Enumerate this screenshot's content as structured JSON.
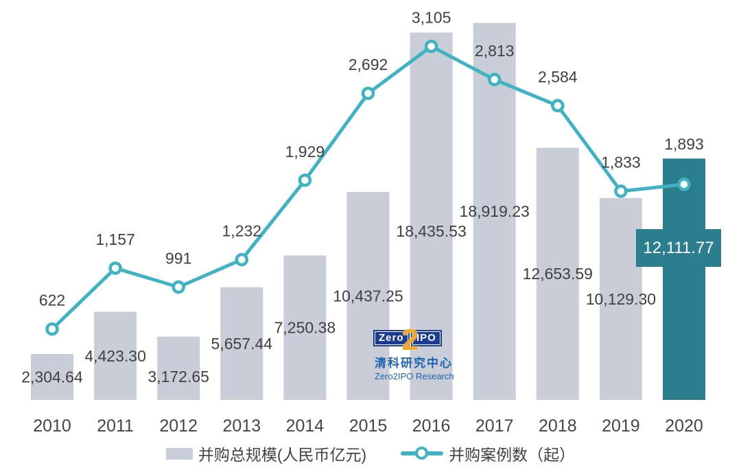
{
  "chart_data": {
    "type": "combo",
    "title": "",
    "categories": [
      "2010",
      "2011",
      "2012",
      "2013",
      "2014",
      "2015",
      "2016",
      "2017",
      "2018",
      "2019",
      "2020"
    ],
    "series": [
      {
        "name": "并购总规模(人民币亿元)",
        "type": "bar",
        "unit": "人民币亿元",
        "values": [
          2304.64,
          4423.3,
          3172.65,
          5657.44,
          7250.38,
          10437.25,
          18435.53,
          18919.23,
          12653.59,
          10129.3,
          12111.77
        ],
        "labels": [
          "2,304.64",
          "4,423.30",
          "3,172.65",
          "5,657.44",
          "7,250.38",
          "10,437.25",
          "18,435.53",
          "18,919.23",
          "12,653.59",
          "10,129.30",
          "12,111.77"
        ],
        "color": "#c8cdd8",
        "highlight_index": 10,
        "highlight_color": "#2b7e8e",
        "highlight_label_bg": "#2b7e8e",
        "highlight_label_color": "#ffffff",
        "axis": {
          "min": 0,
          "max": 20000
        }
      },
      {
        "name": "并购案例数（起）",
        "type": "line",
        "unit": "起",
        "values": [
          622,
          1157,
          991,
          1232,
          1929,
          2692,
          3105,
          2813,
          2584,
          1833,
          1893
        ],
        "labels": [
          "622",
          "1,157",
          "991",
          "1,232",
          "1,929",
          "2,692",
          "3,105",
          "2,813",
          "2,584",
          "1,833",
          "1,893"
        ],
        "color": "#3db3c3",
        "marker": "circle-white-fill",
        "axis": {
          "min": 0,
          "max": 3500
        }
      }
    ],
    "label_color": "#404040",
    "axis_label_color": "#454545",
    "background": "#ffffff",
    "grid": false,
    "legend_position": "bottom"
  },
  "logo": {
    "zero": "Zero",
    "two": "2",
    "ipo": "IPO",
    "cn": "清科研究中心",
    "en": "Zero2IPO Research"
  }
}
